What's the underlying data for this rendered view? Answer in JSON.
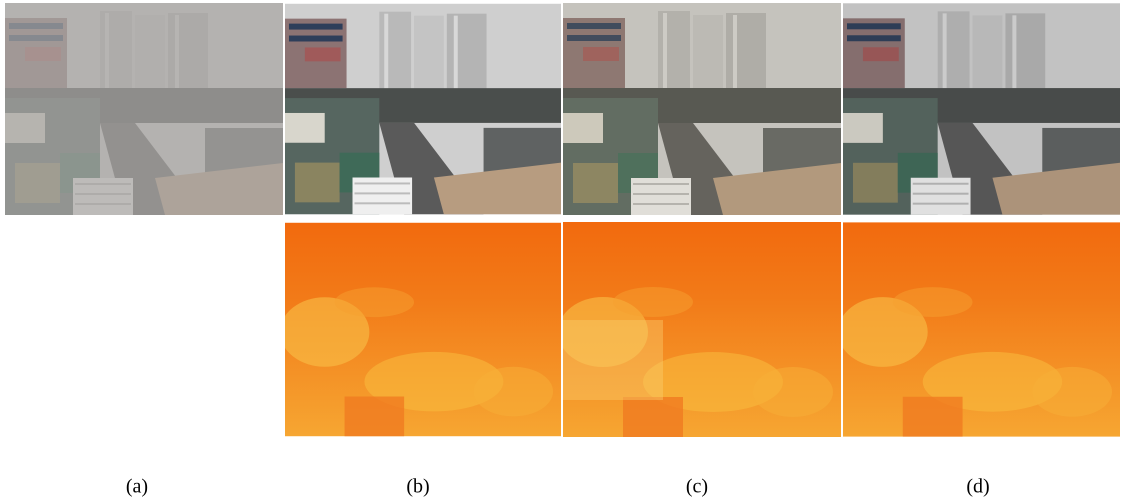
{
  "figure": {
    "captions": [
      "(a)",
      "(b)",
      "(c)",
      "(d)"
    ]
  }
}
